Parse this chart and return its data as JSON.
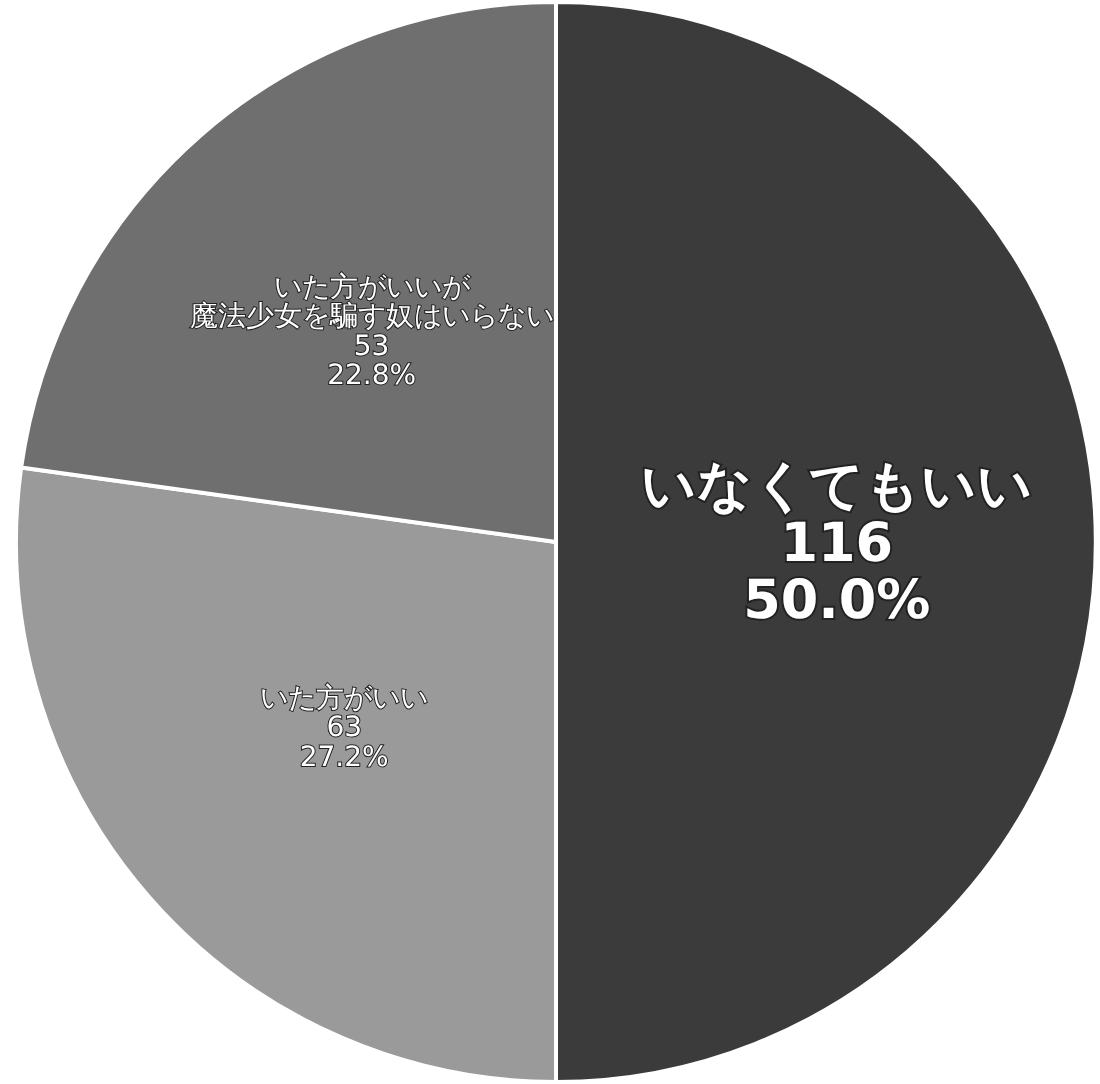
{
  "chart_data": {
    "type": "pie",
    "categories": [
      "いなくてもいい",
      "いた方がいい",
      "いた方がいいが魔法少女を騙す奴はいらない"
    ],
    "values": [
      50.0,
      27.2,
      22.8
    ],
    "colors": [
      "#3b3b3b",
      "#9a9a9a",
      "#6f6f6f"
    ],
    "value_labels": [
      "116\n50.0%",
      "63\n27.2%",
      "53\n22.8%"
    ]
  }
}
